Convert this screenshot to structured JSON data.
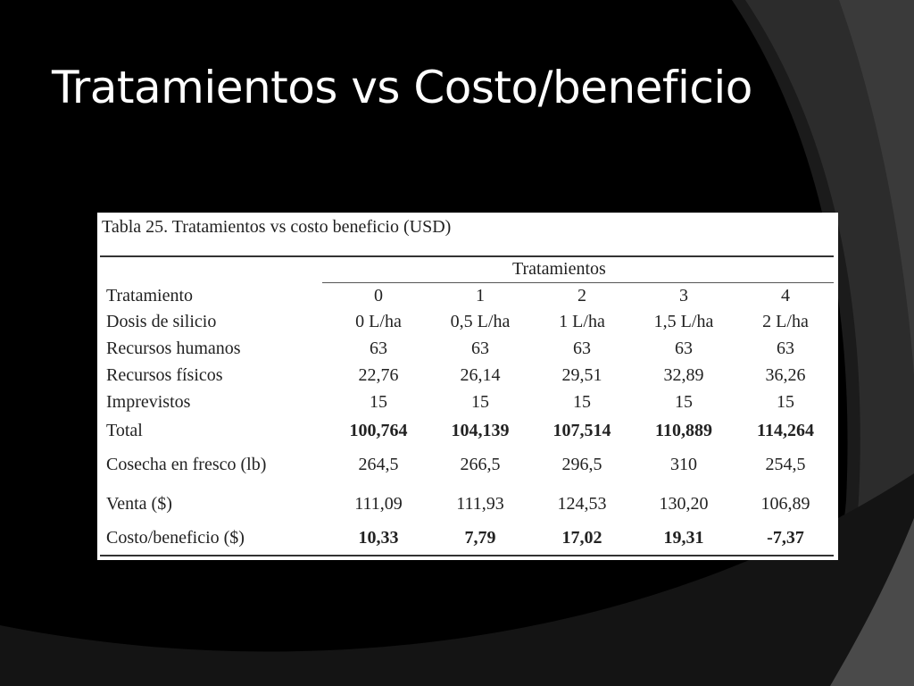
{
  "slide": {
    "title": "Tratamientos vs Costo/beneficio"
  },
  "table": {
    "caption": "Tabla 25. Tratamientos vs costo beneficio (USD)",
    "group_header": "Tratamientos",
    "rows": [
      {
        "label": "Tratamiento",
        "values": [
          "0",
          "1",
          "2",
          "3",
          "4"
        ],
        "bold": false,
        "height": 27
      },
      {
        "label": "Dosis de silicio",
        "values": [
          "0 L/ha",
          "0,5 L/ha",
          "1 L/ha",
          "1,5 L/ha",
          "2 L/ha"
        ],
        "bold": false,
        "height": 30
      },
      {
        "label": "Recursos humanos",
        "values": [
          "63",
          "63",
          "63",
          "63",
          "63"
        ],
        "bold": false,
        "height": 30
      },
      {
        "label": "Recursos físicos",
        "values": [
          "22,76",
          "26,14",
          "29,51",
          "32,89",
          "36,26"
        ],
        "bold": false,
        "height": 30
      },
      {
        "label": "Imprevistos",
        "values": [
          "15",
          "15",
          "15",
          "15",
          "15"
        ],
        "bold": false,
        "height": 30
      },
      {
        "label": "Total",
        "values": [
          "100,764",
          "104,139",
          "107,514",
          "110,889",
          "114,264"
        ],
        "bold": true,
        "height": 34
      },
      {
        "label": "Cosecha en fresco (lb)",
        "values": [
          "264,5",
          "266,5",
          "296,5",
          "310",
          "254,5"
        ],
        "bold": false,
        "height": 42
      },
      {
        "label": "Venta ($)",
        "values": [
          "111,09",
          "111,93",
          "124,53",
          "130,20",
          "106,89"
        ],
        "bold": false,
        "height": 46
      },
      {
        "label": "Costo/beneficio ($)",
        "values": [
          "10,33",
          "7,79",
          "17,02",
          "19,31",
          "-7,37"
        ],
        "bold": true,
        "height": 30
      }
    ]
  }
}
